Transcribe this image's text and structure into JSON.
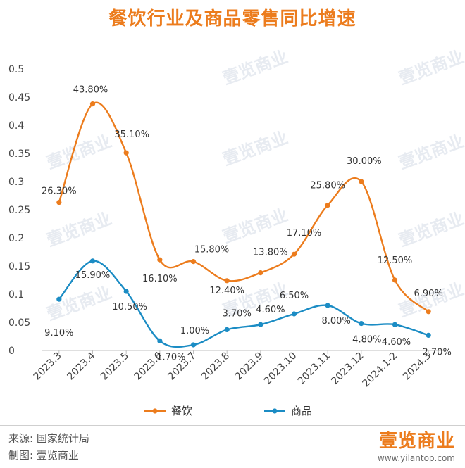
{
  "chart_data": {
    "type": "line",
    "title": "餐饮行业及商品零售同比增速",
    "categories": [
      "2023.3",
      "2023.4",
      "2023.5",
      "2023.6",
      "2023.7",
      "2023.8",
      "2023.9",
      "2023.10",
      "2023.11",
      "2023.12",
      "2024.1-2",
      "2024.3"
    ],
    "ylim": [
      0,
      0.5
    ],
    "yticks": [
      0,
      0.05,
      0.1,
      0.15,
      0.2,
      0.25,
      0.3,
      0.35,
      0.4,
      0.45,
      0.5
    ],
    "ytick_labels": [
      "0",
      "0.05",
      "0.1",
      "0.15",
      "0.2",
      "0.25",
      "0.3",
      "0.35",
      "0.4",
      "0.45",
      "0.5"
    ],
    "grid": false,
    "legend_position": "bottom",
    "series": [
      {
        "name": "餐饮",
        "color": "#ec7c1d",
        "values": [
          0.263,
          0.438,
          0.351,
          0.161,
          0.158,
          0.124,
          0.138,
          0.171,
          0.258,
          0.3,
          0.125,
          0.069
        ],
        "labels": [
          "26.30%",
          "43.80%",
          "35.10%",
          "16.10%",
          "15.80%",
          "12.40%",
          "13.80%",
          "17.10%",
          "25.80%",
          "30.00%",
          "12.50%",
          "6.90%"
        ]
      },
      {
        "name": "商品",
        "color": "#1b8cc4",
        "values": [
          0.091,
          0.159,
          0.105,
          0.017,
          0.01,
          0.037,
          0.046,
          0.065,
          0.08,
          0.048,
          0.046,
          0.027
        ],
        "labels": [
          "9.10%",
          "15.90%",
          "10.50%",
          "1.70%",
          "1.00%",
          "3.70%",
          "4.60%",
          "6.50%",
          "8.00%",
          "4.80%",
          "4.60%",
          "2.70%"
        ]
      }
    ]
  },
  "watermark": "壹览商业",
  "footer": {
    "source": "来源:  国家统计局",
    "maker": "制图:  壹览商业",
    "brand": "壹览商业",
    "site": "www.yilantop.com"
  }
}
